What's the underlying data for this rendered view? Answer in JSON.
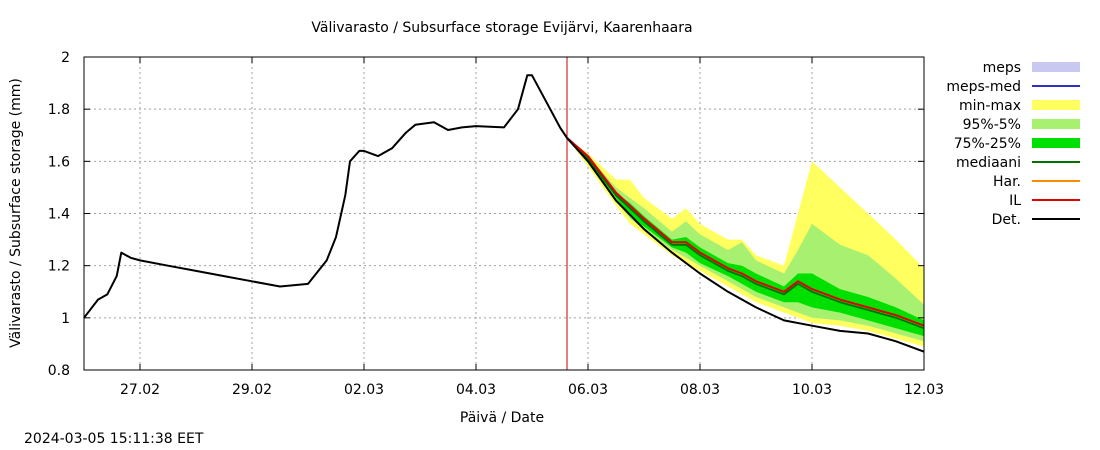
{
  "chart_data": {
    "type": "line",
    "title": "Välivarasto / Subsurface storage  Evijärvi, Kaarenhaara",
    "xlabel": "Päivä / Date",
    "ylabel": "Välivarasto / Subsurface storage (mm)",
    "ylim": [
      0.8,
      2.0
    ],
    "xlim": [
      "2024-02-26",
      "2024-03-12"
    ],
    "x_ticks": [
      {
        "date": "2024-02-27",
        "label": "27.02"
      },
      {
        "date": "2024-02-29",
        "label": "29.02"
      },
      {
        "date": "2024-03-02",
        "label": "02.03"
      },
      {
        "date": "2024-03-04",
        "label": "04.03"
      },
      {
        "date": "2024-03-06",
        "label": "06.03"
      },
      {
        "date": "2024-03-08",
        "label": "08.03"
      },
      {
        "date": "2024-03-10",
        "label": "10.03"
      },
      {
        "date": "2024-03-12",
        "label": "12.03"
      }
    ],
    "y_ticks": [
      {
        "value": 0.8,
        "label": "0.8"
      },
      {
        "value": 1.0,
        "label": "1"
      },
      {
        "value": 1.2,
        "label": "1.2"
      },
      {
        "value": 1.4,
        "label": "1.4"
      },
      {
        "value": 1.6,
        "label": "1.6"
      },
      {
        "value": 1.8,
        "label": "1.8"
      },
      {
        "value": 2.0,
        "label": "2"
      }
    ],
    "grid": true,
    "legend_position": "right",
    "forecast_start": "2024-03-05 15:00",
    "forecast_line_color": "#cc0000",
    "legend": [
      {
        "label": "meps",
        "color": "#c8c8f0",
        "kind": "band"
      },
      {
        "label": "meps-med",
        "color": "#3030c0",
        "kind": "line"
      },
      {
        "label": "min-max",
        "color": "#ffff60",
        "kind": "band"
      },
      {
        "label": "95%-5%",
        "color": "#a8f070",
        "kind": "band"
      },
      {
        "label": "75%-25%",
        "color": "#00e000",
        "kind": "band"
      },
      {
        "label": "mediaani",
        "color": "#007000",
        "kind": "line"
      },
      {
        "label": "Har.",
        "color": "#ff8c00",
        "kind": "line"
      },
      {
        "label": "IL",
        "color": "#e00000",
        "kind": "line"
      },
      {
        "label": "Det.",
        "color": "#000000",
        "kind": "line"
      }
    ],
    "forecast_x": [
      "2024-03-05 15:00",
      "2024-03-06 00:00",
      "2024-03-06 12:00",
      "2024-03-06 18:00",
      "2024-03-07 00:00",
      "2024-03-07 12:00",
      "2024-03-07 18:00",
      "2024-03-08 00:00",
      "2024-03-08 12:00",
      "2024-03-08 18:00",
      "2024-03-09 00:00",
      "2024-03-09 12:00",
      "2024-03-09 18:00",
      "2024-03-10 00:00",
      "2024-03-10 12:00",
      "2024-03-11 00:00",
      "2024-03-11 12:00",
      "2024-03-12 00:00"
    ],
    "series": [
      {
        "name": "meps",
        "kind": "band",
        "upper": [
          1.69,
          1.63,
          1.52,
          1.45,
          1.4,
          1.34,
          1.3,
          1.26,
          1.22,
          1.19,
          1.16,
          1.13,
          1.11,
          1.09,
          null,
          null,
          null,
          null
        ],
        "lower": [
          1.69,
          1.61,
          1.49,
          1.42,
          1.37,
          1.3,
          1.27,
          1.23,
          1.19,
          1.16,
          1.13,
          1.1,
          1.08,
          1.07,
          null,
          null,
          null,
          null
        ]
      },
      {
        "name": "min-max",
        "kind": "band",
        "upper": [
          1.69,
          1.63,
          1.53,
          1.53,
          1.46,
          1.38,
          1.42,
          1.36,
          1.3,
          1.3,
          1.24,
          1.2,
          1.4,
          1.6,
          1.5,
          1.4,
          1.3,
          1.19
        ],
        "lower": [
          1.69,
          1.58,
          1.43,
          1.36,
          1.32,
          1.24,
          1.21,
          1.18,
          1.12,
          1.09,
          1.06,
          1.02,
          1.0,
          0.98,
          0.97,
          0.95,
          0.92,
          0.89
        ]
      },
      {
        "name": "95%-5%",
        "kind": "band",
        "upper": [
          1.69,
          1.62,
          1.5,
          1.46,
          1.42,
          1.33,
          1.37,
          1.32,
          1.26,
          1.29,
          1.22,
          1.17,
          1.26,
          1.36,
          1.28,
          1.24,
          1.15,
          1.05
        ],
        "lower": [
          1.69,
          1.59,
          1.45,
          1.38,
          1.34,
          1.26,
          1.23,
          1.2,
          1.14,
          1.11,
          1.08,
          1.04,
          1.02,
          1.0,
          0.99,
          0.97,
          0.94,
          0.91
        ]
      },
      {
        "name": "75%-25%",
        "kind": "band",
        "upper": [
          1.69,
          1.62,
          1.48,
          1.44,
          1.39,
          1.3,
          1.31,
          1.27,
          1.21,
          1.2,
          1.17,
          1.12,
          1.17,
          1.17,
          1.11,
          1.08,
          1.04,
          0.99
        ],
        "lower": [
          1.69,
          1.6,
          1.46,
          1.39,
          1.35,
          1.27,
          1.25,
          1.21,
          1.16,
          1.13,
          1.1,
          1.06,
          1.06,
          1.04,
          1.02,
          0.99,
          0.96,
          0.93
        ]
      },
      {
        "name": "mediaani",
        "kind": "line",
        "values": [
          1.69,
          1.61,
          1.47,
          1.42,
          1.37,
          1.28,
          1.28,
          1.24,
          1.18,
          1.16,
          1.13,
          1.09,
          1.13,
          1.1,
          1.06,
          1.03,
          1.0,
          0.96
        ]
      },
      {
        "name": "IL",
        "kind": "line",
        "values": [
          1.69,
          1.62,
          1.48,
          1.43,
          1.38,
          1.29,
          1.29,
          1.25,
          1.19,
          1.17,
          1.14,
          1.1,
          1.14,
          1.11,
          1.07,
          1.04,
          1.01,
          0.97
        ]
      },
      {
        "name": "Det.",
        "kind": "line",
        "x": [
          "2024-02-26 00:00",
          "2024-02-26 06:00",
          "2024-02-26 10:00",
          "2024-02-26 14:00",
          "2024-02-26 16:00",
          "2024-02-26 18:00",
          "2024-02-26 20:00",
          "2024-02-27 00:00",
          "2024-02-27 12:00",
          "2024-02-28 00:00",
          "2024-02-28 12:00",
          "2024-02-29 00:00",
          "2024-02-29 12:00",
          "2024-03-01 00:00",
          "2024-03-01 08:00",
          "2024-03-01 12:00",
          "2024-03-01 16:00",
          "2024-03-01 18:00",
          "2024-03-01 22:00",
          "2024-03-02 00:00",
          "2024-03-02 06:00",
          "2024-03-02 12:00",
          "2024-03-02 18:00",
          "2024-03-02 22:00",
          "2024-03-03 06:00",
          "2024-03-03 12:00",
          "2024-03-03 18:00",
          "2024-03-04 00:00",
          "2024-03-04 12:00",
          "2024-03-04 18:00",
          "2024-03-04 22:00",
          "2024-03-05 00:00",
          "2024-03-05 06:00",
          "2024-03-05 12:00",
          "2024-03-05 15:00",
          "2024-03-06 00:00",
          "2024-03-06 12:00",
          "2024-03-07 00:00",
          "2024-03-07 12:00",
          "2024-03-08 00:00",
          "2024-03-08 12:00",
          "2024-03-09 00:00",
          "2024-03-09 12:00",
          "2024-03-10 00:00",
          "2024-03-10 12:00",
          "2024-03-11 00:00",
          "2024-03-11 12:00",
          "2024-03-12 00:00"
        ],
        "values": [
          1.0,
          1.07,
          1.09,
          1.16,
          1.25,
          1.24,
          1.23,
          1.22,
          1.2,
          1.18,
          1.16,
          1.14,
          1.12,
          1.13,
          1.22,
          1.31,
          1.47,
          1.6,
          1.64,
          1.64,
          1.62,
          1.65,
          1.71,
          1.74,
          1.75,
          1.72,
          1.73,
          1.735,
          1.73,
          1.8,
          1.93,
          1.93,
          1.83,
          1.73,
          1.69,
          1.6,
          1.45,
          1.34,
          1.25,
          1.17,
          1.1,
          1.04,
          0.99,
          0.97,
          0.95,
          0.94,
          0.91,
          0.87
        ]
      }
    ]
  },
  "footer": {
    "timestamp": "2024-03-05 15:11:38 EET"
  }
}
